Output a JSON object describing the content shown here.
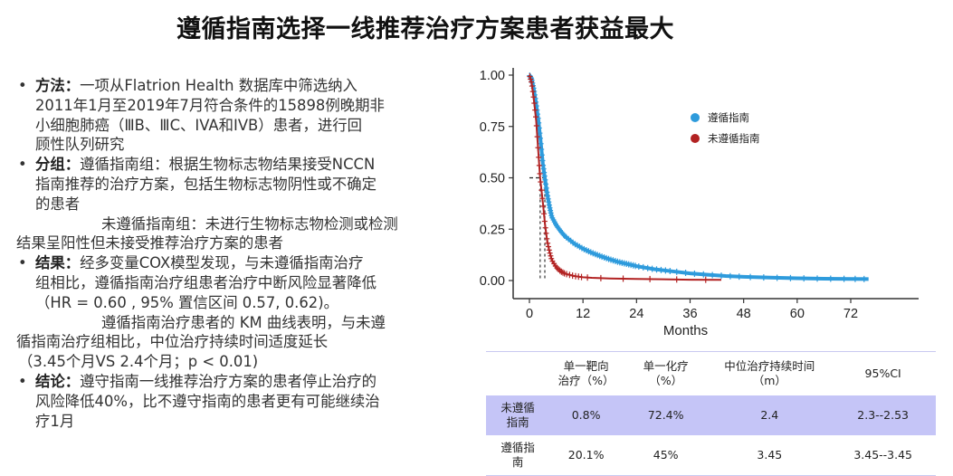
{
  "title": "遵循指南选择一线推荐治疗方案患者获益最大",
  "bullets": [
    {
      "label": "方法：",
      "lines": [
        "一项从Flatrion Health 数据库中筛选纳入",
        "2011年1月至2019年7月符合条件的15898例晚期非",
        "小细胞肺癌（ⅢB、ⅢC、IVA和IVB）患者，进行回",
        "顾性队列研究"
      ]
    },
    {
      "label": "分组：",
      "lines": [
        "遵循指南组：根据生物标志物结果接受NCCN",
        "指南推荐的治疗方案，包括生物标志物阴性或不确定",
        "的患者"
      ],
      "extra_first": "未遵循指南组：未进行生物标志物检测或检测",
      "extra_rest": "结果呈阳性但未接受推荐治疗方案的患者"
    },
    {
      "label": "结果：",
      "lines": [
        "经多变量COX模型发现，与未遵循指南治疗",
        "组相比，遵循指南治疗组患者治疗中断风险显著降低",
        "（HR = 0.60 , 95% 置信区间 0.57, 0.62)。"
      ],
      "extra_first": "遵循指南治疗患者的 KM 曲线表明，与未遵",
      "extra_rest": "循指南治疗组相比，中位治疗持续时间适度延长",
      "extra_tail": "（3.45个月VS 2.4个月；p  < 0.01)"
    },
    {
      "label": "结论：",
      "lines": [
        "遵守指南一线推荐治疗方案的患者停止治疗的",
        "风险降低40%，比不遵守指南的患者更有可能继续治",
        "疗1月"
      ]
    }
  ],
  "bullet_glyph": "•",
  "chart_data": {
    "type": "line",
    "title": "",
    "xlabel": "Months",
    "ylabel": "",
    "xlim": [
      0,
      76
    ],
    "ylim": [
      0,
      1
    ],
    "xticks": [
      0,
      12,
      24,
      36,
      48,
      60,
      72
    ],
    "yticks": [
      "0.00",
      "0.25",
      "0.50",
      "0.75",
      "1.00"
    ],
    "grid": false,
    "legend_position": "right",
    "series": [
      {
        "name": "遵循指南",
        "color": "#2e9bdc",
        "median": 3.45,
        "points": [
          [
            0,
            1.0
          ],
          [
            0.5,
            0.98
          ],
          [
            1,
            0.93
          ],
          [
            1.5,
            0.86
          ],
          [
            2,
            0.78
          ],
          [
            2.5,
            0.68
          ],
          [
            3,
            0.57
          ],
          [
            3.45,
            0.5
          ],
          [
            4,
            0.42
          ],
          [
            4.5,
            0.36
          ],
          [
            5,
            0.31
          ],
          [
            6,
            0.27
          ],
          [
            7,
            0.24
          ],
          [
            8,
            0.215
          ],
          [
            10,
            0.18
          ],
          [
            12,
            0.155
          ],
          [
            14,
            0.135
          ],
          [
            16,
            0.118
          ],
          [
            18,
            0.103
          ],
          [
            20,
            0.09
          ],
          [
            22,
            0.08
          ],
          [
            24,
            0.07
          ],
          [
            28,
            0.055
          ],
          [
            32,
            0.045
          ],
          [
            36,
            0.035
          ],
          [
            40,
            0.028
          ],
          [
            44,
            0.022
          ],
          [
            48,
            0.018
          ],
          [
            54,
            0.014
          ],
          [
            60,
            0.011
          ],
          [
            66,
            0.009
          ],
          [
            72,
            0.008
          ],
          [
            76,
            0.007
          ]
        ]
      },
      {
        "name": "未遵循指南",
        "color": "#b22222",
        "median": 2.4,
        "points": [
          [
            0,
            1.0
          ],
          [
            0.5,
            0.96
          ],
          [
            1,
            0.88
          ],
          [
            1.5,
            0.78
          ],
          [
            2,
            0.62
          ],
          [
            2.4,
            0.5
          ],
          [
            3,
            0.38
          ],
          [
            3.5,
            0.27
          ],
          [
            4,
            0.19
          ],
          [
            4.5,
            0.14
          ],
          [
            5,
            0.1
          ],
          [
            6,
            0.065
          ],
          [
            7,
            0.045
          ],
          [
            8,
            0.033
          ],
          [
            10,
            0.022
          ],
          [
            12,
            0.016
          ],
          [
            14,
            0.013
          ],
          [
            18,
            0.01
          ],
          [
            24,
            0.008
          ],
          [
            30,
            0.006
          ],
          [
            36,
            0.004
          ],
          [
            43,
            0.003
          ]
        ]
      }
    ]
  },
  "table": {
    "headers": [
      "",
      "单一靶向\n治疗（%）",
      "单一化疗\n（%）",
      "中位治疗持续时间\n（m）",
      "95%CI"
    ],
    "rows": [
      [
        "未遵循\n指南",
        "0.8%",
        "72.4%",
        "2.4",
        "2.3--2.53"
      ],
      [
        "遵循指\n南",
        "20.1%",
        "45%",
        "3.45",
        "3.45--3.45"
      ]
    ],
    "highlight_color": "#c5c5f7"
  }
}
